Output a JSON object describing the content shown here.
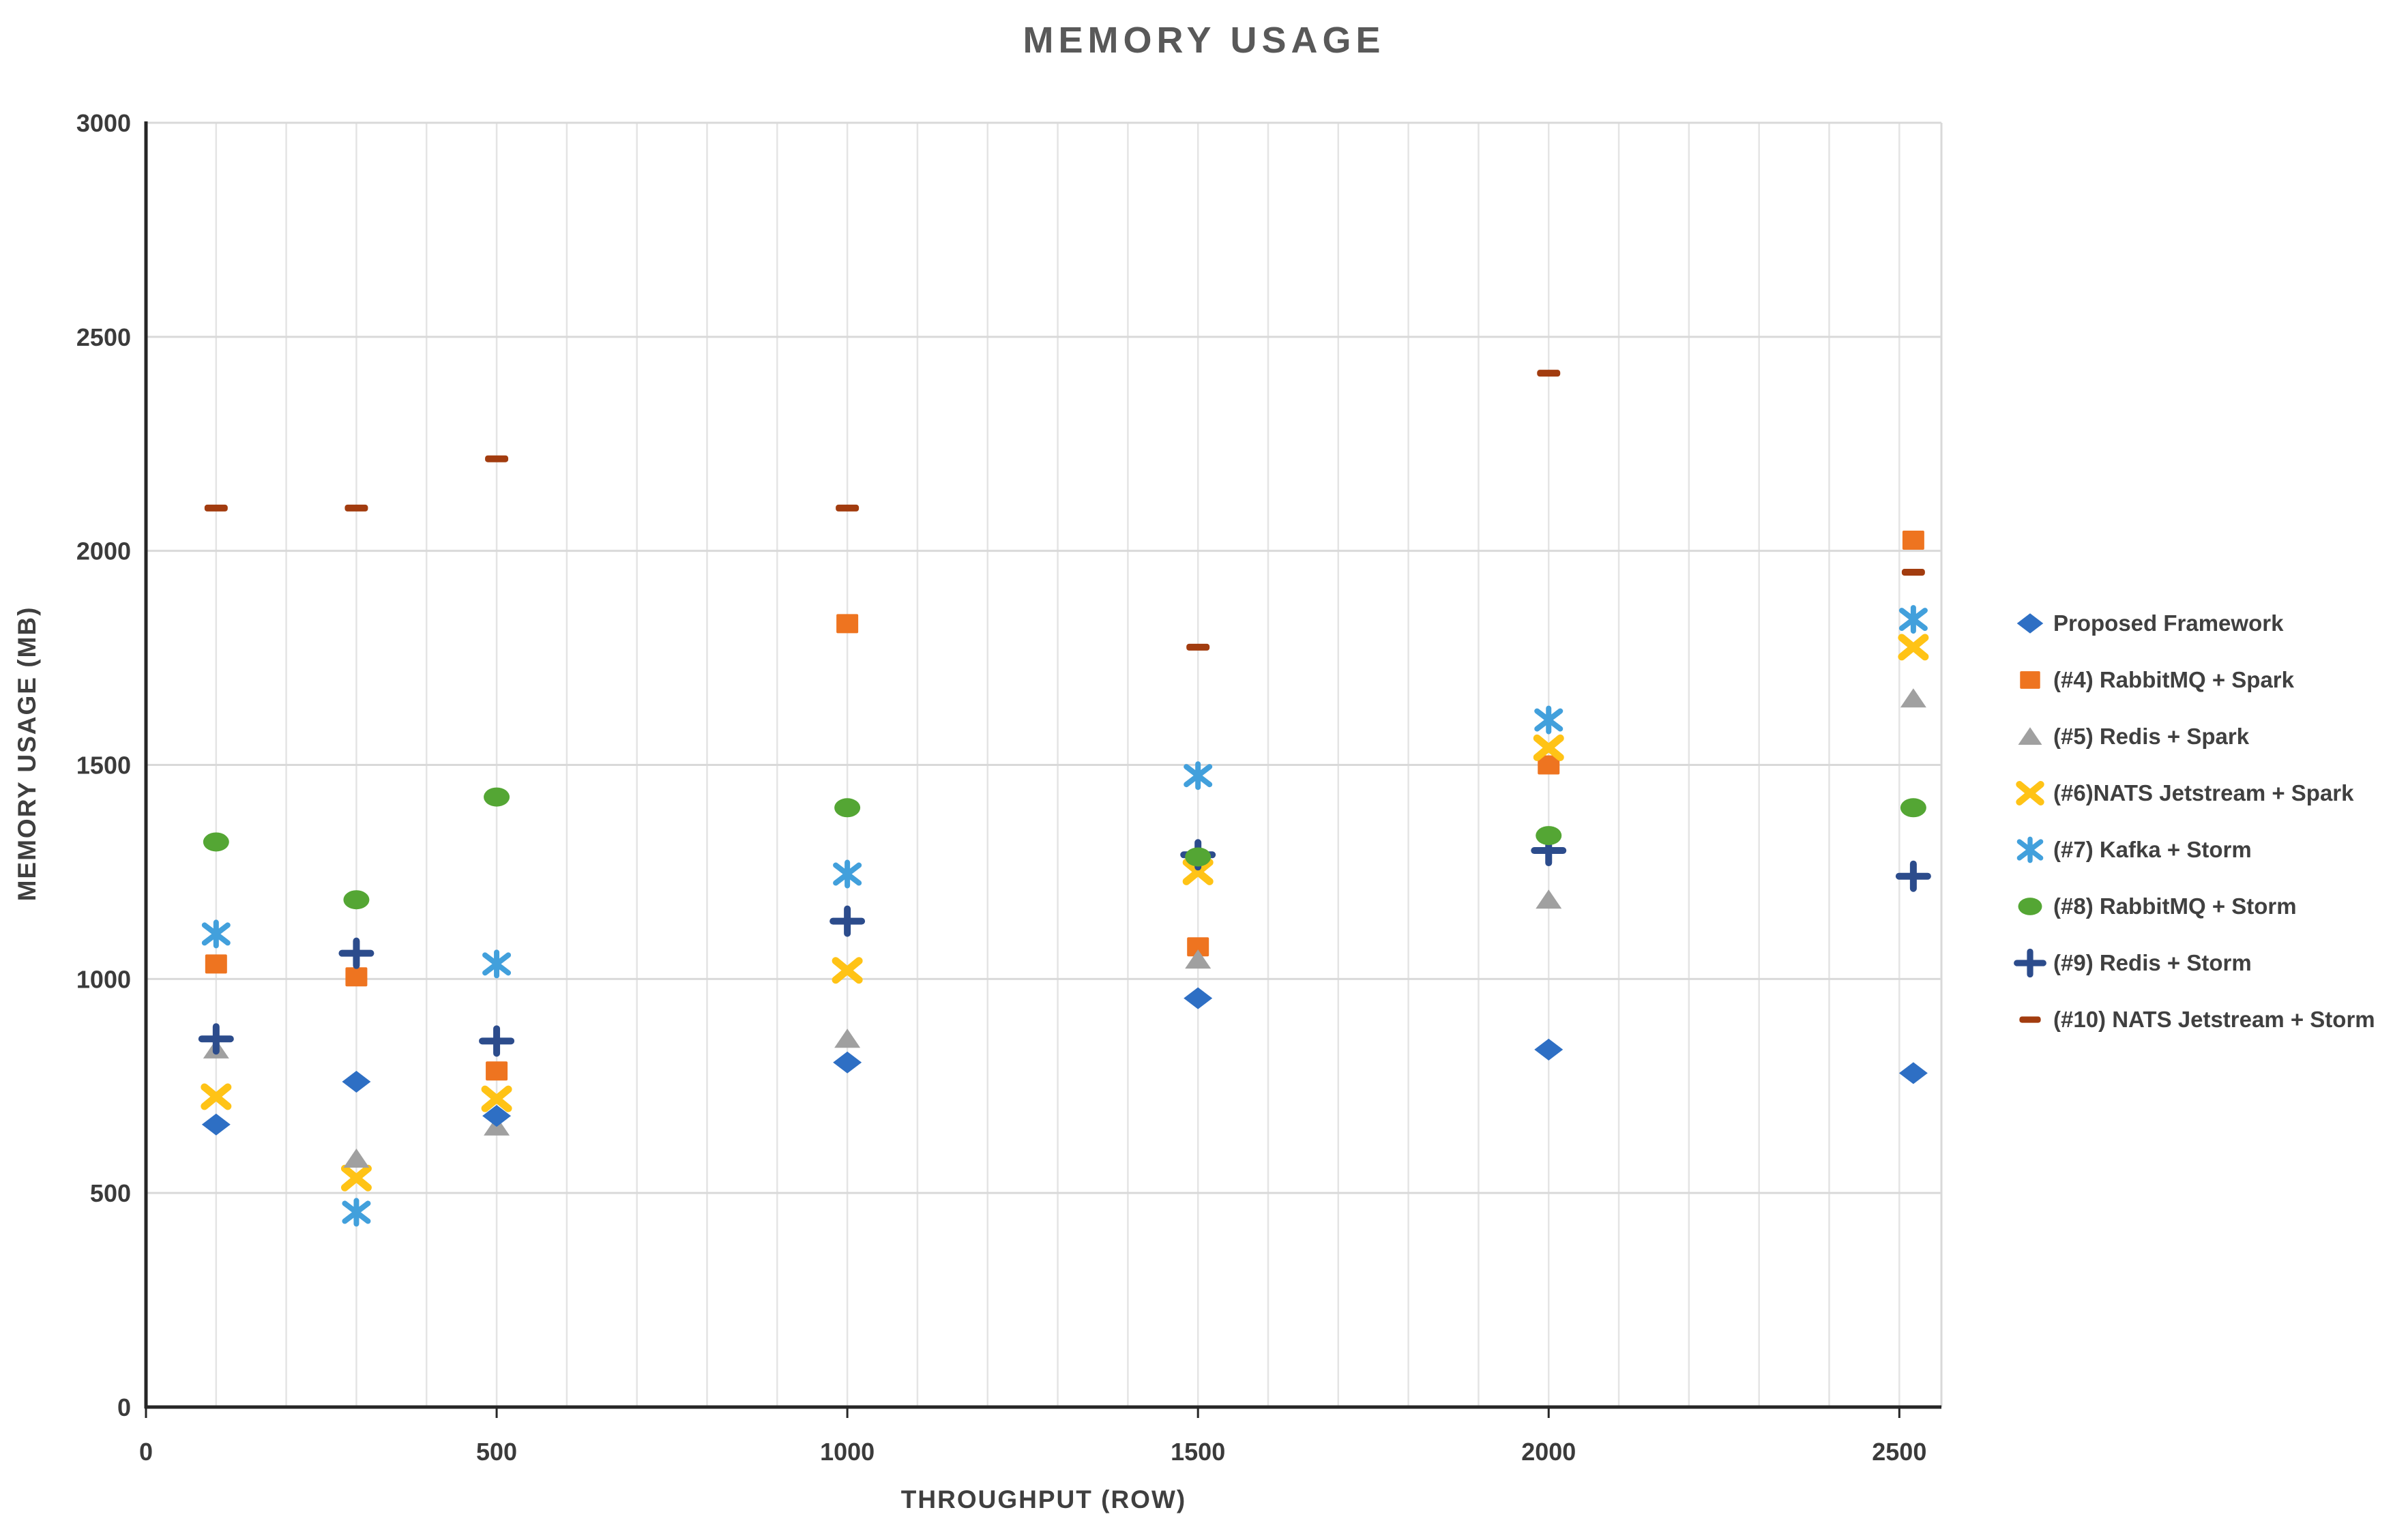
{
  "title": "MEMORY USAGE",
  "chart_data": {
    "type": "scatter",
    "title": "MEMORY USAGE",
    "xlabel": "THROUGHPUT (ROW)",
    "ylabel": "MEMORY USAGE (MB)",
    "xlim": [
      0,
      2560
    ],
    "ylim": [
      0,
      3000
    ],
    "x_ticks": [
      0,
      500,
      1000,
      1500,
      2000,
      2500
    ],
    "y_ticks": [
      0,
      500,
      1000,
      1500,
      2000,
      2500,
      3000
    ],
    "grid": {
      "horizontal_major_step": 500,
      "vertical_minor_step": 100,
      "grid_on": true
    },
    "legend_position": "right",
    "x": [
      100,
      300,
      500,
      1000,
      1500,
      2000,
      2520
    ],
    "series": [
      {
        "name": "Proposed Framework",
        "marker": "diamond",
        "color": "#2E6FC4",
        "values": [
          660,
          760,
          680,
          805,
          955,
          835,
          780
        ]
      },
      {
        "name": "(#4) RabbitMQ + Spark",
        "marker": "square",
        "color": "#EE7420",
        "values": [
          1035,
          1005,
          785,
          1830,
          1075,
          1500,
          2025
        ]
      },
      {
        "name": "(#5) Redis + Spark",
        "marker": "triangle",
        "color": "#A0A0A0",
        "values": [
          835,
          580,
          655,
          860,
          1045,
          1185,
          1655
        ]
      },
      {
        "name": "(#6)NATS Jetstream + Spark",
        "marker": "x",
        "color": "#FFC316",
        "values": [
          725,
          535,
          720,
          1020,
          1250,
          1540,
          1775
        ]
      },
      {
        "name": "(#7) Kafka + Storm",
        "marker": "asterisk",
        "color": "#42A0DC",
        "values": [
          1105,
          455,
          1035,
          1245,
          1475,
          1605,
          1840
        ]
      },
      {
        "name": "(#8) RabbitMQ + Storm",
        "marker": "circle",
        "color": "#54A634",
        "values": [
          1320,
          1185,
          1425,
          1400,
          1285,
          1335,
          1400
        ]
      },
      {
        "name": "(#9) Redis + Storm",
        "marker": "plus",
        "color": "#2C4C8C",
        "values": [
          860,
          1060,
          855,
          1135,
          1290,
          1300,
          1240
        ]
      },
      {
        "name": "(#10) NATS Jetstream + Storm",
        "marker": "dash",
        "color": "#A23C0F",
        "values": [
          2100,
          2100,
          2215,
          2100,
          1775,
          2415,
          1950
        ]
      }
    ],
    "axis_text_color": "#3b3b3b",
    "gridline_color": "#d9d9d9",
    "minor_gridline_color": "#e4e4e4",
    "axis_line_color": "#262626"
  }
}
